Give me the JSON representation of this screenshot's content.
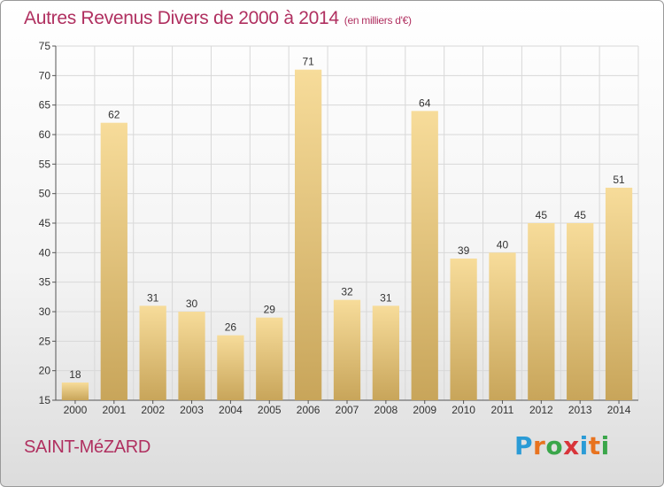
{
  "title": "Autres Revenus Divers de 2000 à 2014",
  "subtitle": "(en milliers d'€)",
  "city": "SAINT-MéZARD",
  "logo": {
    "letters": [
      "P",
      "r",
      "o",
      "x",
      "i",
      "t",
      "i"
    ],
    "colors": [
      "#2a9bd6",
      "#e8731f",
      "#3aa64a",
      "#d8343a",
      "#2a9bd6",
      "#e8731f",
      "#3aa64a"
    ]
  },
  "colors": {
    "accent": "#b03060",
    "bar_light": "#f7dc9a",
    "bar_dark": "#c8a55a",
    "grid": "#d8d8d8"
  },
  "chart_data": {
    "type": "bar",
    "categories": [
      "2000",
      "2001",
      "2002",
      "2003",
      "2004",
      "2005",
      "2006",
      "2007",
      "2008",
      "2009",
      "2010",
      "2011",
      "2012",
      "2013",
      "2014"
    ],
    "values": [
      18,
      62,
      31,
      30,
      26,
      29,
      71,
      32,
      31,
      64,
      39,
      40,
      45,
      45,
      51
    ],
    "ylim": [
      15,
      75
    ],
    "yticks": [
      15,
      20,
      25,
      30,
      35,
      40,
      45,
      50,
      55,
      60,
      65,
      70,
      75
    ],
    "grid": true
  }
}
